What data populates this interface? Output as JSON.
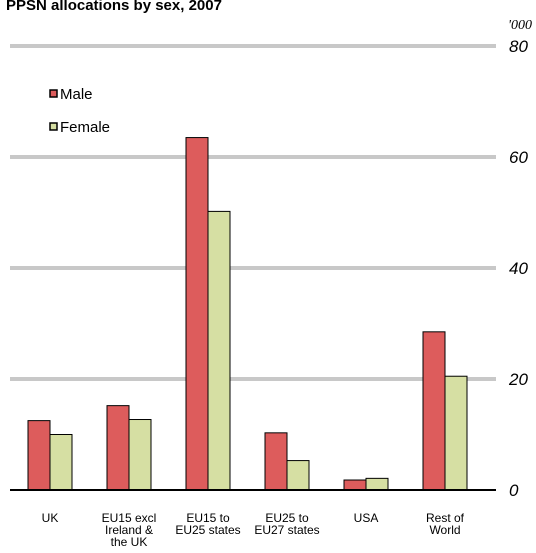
{
  "chart_data": {
    "type": "bar",
    "title": "PPSN allocations  by sex, 2007",
    "unit_label": "'000",
    "categories": [
      [
        "UK"
      ],
      [
        "EU15 excl",
        "Ireland &",
        "the UK"
      ],
      [
        "EU15 to",
        "EU25 states"
      ],
      [
        "EU25 to",
        "EU27 states"
      ],
      [
        "USA"
      ],
      [
        "Rest of",
        "World"
      ]
    ],
    "series": [
      {
        "name": "Male",
        "color": "#dd5c5c",
        "values": [
          12.5,
          15.2,
          63.5,
          10.3,
          1.8,
          28.5
        ]
      },
      {
        "name": "Female",
        "color": "#d6dfa3",
        "values": [
          10.0,
          12.7,
          50.2,
          5.3,
          2.1,
          20.5
        ]
      }
    ],
    "ylim": [
      0,
      80
    ],
    "yticks": [
      0,
      20,
      40,
      60,
      80
    ],
    "ytick_labels": [
      "0",
      "20",
      "40",
      "60",
      "80"
    ],
    "grid": true,
    "legend_position": "top-left"
  }
}
